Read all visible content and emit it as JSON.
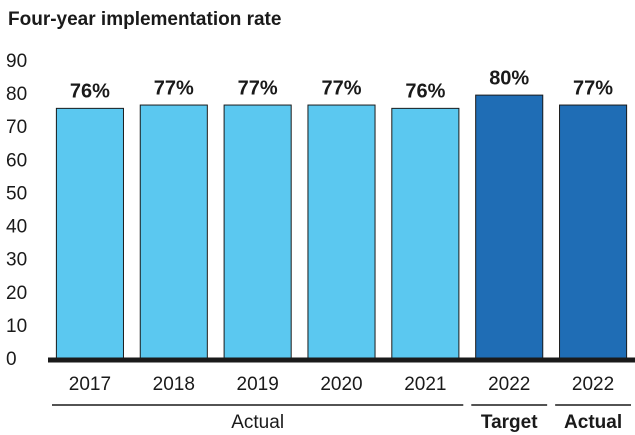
{
  "chart_data": {
    "type": "bar",
    "title": "Four-year implementation rate",
    "categories": [
      "2017",
      "2018",
      "2019",
      "2020",
      "2021",
      "2022",
      "2022"
    ],
    "values": [
      76,
      77,
      77,
      77,
      76,
      80,
      77
    ],
    "value_labels": [
      "76%",
      "77%",
      "77%",
      "77%",
      "76%",
      "80%",
      "77%"
    ],
    "colors": [
      "#5bc8f0",
      "#5bc8f0",
      "#5bc8f0",
      "#5bc8f0",
      "#5bc8f0",
      "#1f6db5",
      "#1f6db5"
    ],
    "groups": [
      {
        "label": "Actual",
        "span": 5,
        "bold": false
      },
      {
        "label": "Target",
        "span": 1,
        "bold": true
      },
      {
        "label": "Actual",
        "span": 1,
        "bold": true
      }
    ],
    "ylim": [
      0,
      90
    ],
    "yticks": [
      0,
      10,
      20,
      30,
      40,
      50,
      60,
      70,
      80,
      90
    ],
    "grid": false
  }
}
